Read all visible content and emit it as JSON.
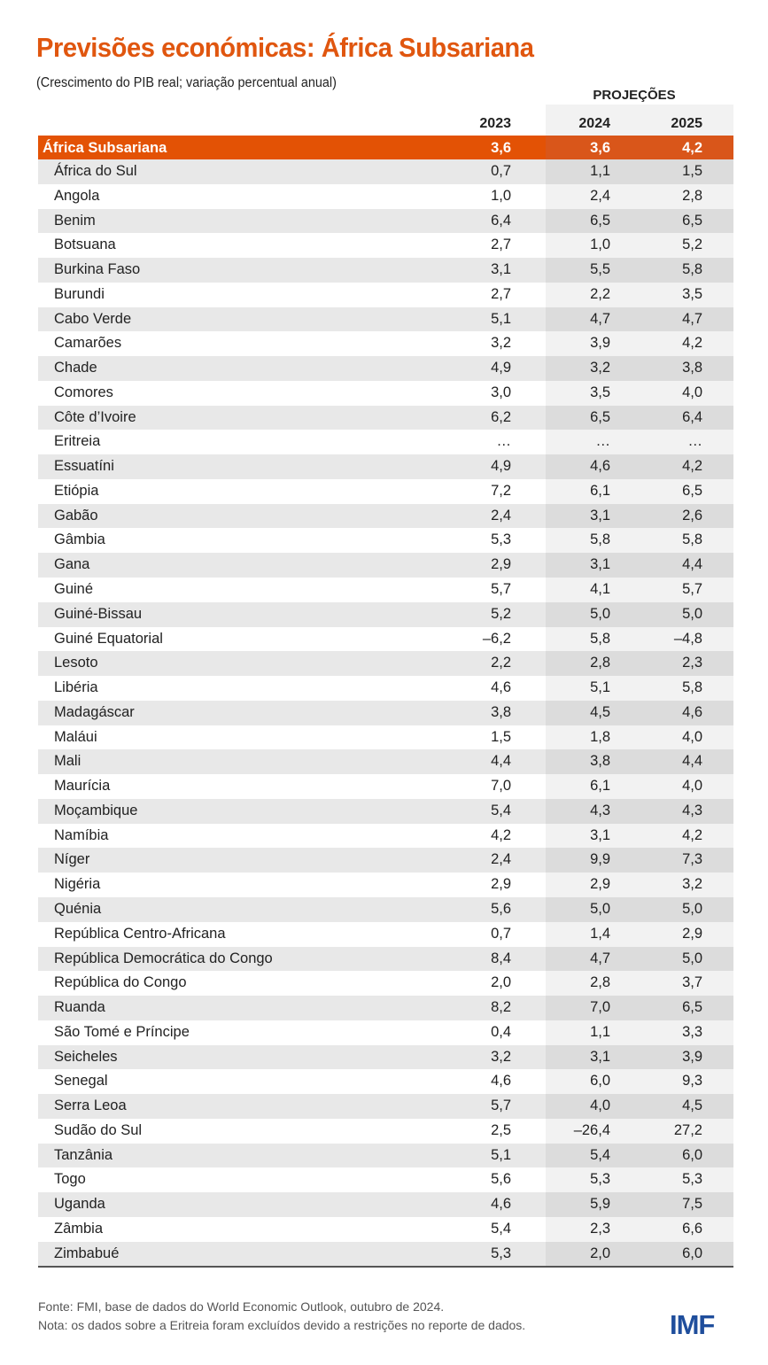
{
  "title": "Previsões económicas: África Subsariana",
  "subtitle": "(Crescimento do PIB real; variação percentual anual)",
  "projections_label": "PROJEÇÕES",
  "columns": [
    "2023",
    "2024",
    "2025"
  ],
  "aggregate": {
    "name": "África Subsariana",
    "values": [
      "3,6",
      "3,6",
      "4,2"
    ]
  },
  "rows": [
    {
      "name": "África do Sul",
      "values": [
        "0,7",
        "1,1",
        "1,5"
      ]
    },
    {
      "name": "Angola",
      "values": [
        "1,0",
        "2,4",
        "2,8"
      ]
    },
    {
      "name": "Benim",
      "values": [
        "6,4",
        "6,5",
        "6,5"
      ]
    },
    {
      "name": "Botsuana",
      "values": [
        "2,7",
        "1,0",
        "5,2"
      ]
    },
    {
      "name": "Burkina Faso",
      "values": [
        "3,1",
        "5,5",
        "5,8"
      ]
    },
    {
      "name": "Burundi",
      "values": [
        "2,7",
        "2,2",
        "3,5"
      ]
    },
    {
      "name": "Cabo Verde",
      "values": [
        "5,1",
        "4,7",
        "4,7"
      ]
    },
    {
      "name": "Camarões",
      "values": [
        "3,2",
        "3,9",
        "4,2"
      ]
    },
    {
      "name": "Chade",
      "values": [
        "4,9",
        "3,2",
        "3,8"
      ]
    },
    {
      "name": "Comores",
      "values": [
        "3,0",
        "3,5",
        "4,0"
      ]
    },
    {
      "name": "Côte d’Ivoire",
      "values": [
        "6,2",
        "6,5",
        "6,4"
      ]
    },
    {
      "name": "Eritreia",
      "values": [
        "…",
        "…",
        "…"
      ]
    },
    {
      "name": "Essuatíni",
      "values": [
        "4,9",
        "4,6",
        "4,2"
      ]
    },
    {
      "name": "Etiópia",
      "values": [
        "7,2",
        "6,1",
        "6,5"
      ]
    },
    {
      "name": "Gabão",
      "values": [
        "2,4",
        "3,1",
        "2,6"
      ]
    },
    {
      "name": "Gâmbia",
      "values": [
        "5,3",
        "5,8",
        "5,8"
      ]
    },
    {
      "name": "Gana",
      "values": [
        "2,9",
        "3,1",
        "4,4"
      ]
    },
    {
      "name": "Guiné",
      "values": [
        "5,7",
        "4,1",
        "5,7"
      ]
    },
    {
      "name": "Guiné-Bissau",
      "values": [
        "5,2",
        "5,0",
        "5,0"
      ]
    },
    {
      "name": "Guiné Equatorial",
      "values": [
        "–6,2",
        "5,8",
        "–4,8"
      ]
    },
    {
      "name": "Lesoto",
      "values": [
        "2,2",
        "2,8",
        "2,3"
      ]
    },
    {
      "name": "Libéria",
      "values": [
        "4,6",
        "5,1",
        "5,8"
      ]
    },
    {
      "name": "Madagáscar",
      "values": [
        "3,8",
        "4,5",
        "4,6"
      ]
    },
    {
      "name": "Maláui",
      "values": [
        "1,5",
        "1,8",
        "4,0"
      ]
    },
    {
      "name": "Mali",
      "values": [
        "4,4",
        "3,8",
        "4,4"
      ]
    },
    {
      "name": "Maurícia",
      "values": [
        "7,0",
        "6,1",
        "4,0"
      ]
    },
    {
      "name": "Moçambique",
      "values": [
        "5,4",
        "4,3",
        "4,3"
      ]
    },
    {
      "name": "Namíbia",
      "values": [
        "4,2",
        "3,1",
        "4,2"
      ]
    },
    {
      "name": "Níger",
      "values": [
        "2,4",
        "9,9",
        "7,3"
      ]
    },
    {
      "name": "Nigéria",
      "values": [
        "2,9",
        "2,9",
        "3,2"
      ]
    },
    {
      "name": "Quénia",
      "values": [
        "5,6",
        "5,0",
        "5,0"
      ]
    },
    {
      "name": "República Centro-Africana",
      "values": [
        "0,7",
        "1,4",
        "2,9"
      ]
    },
    {
      "name": "República Democrática do Congo",
      "values": [
        "8,4",
        "4,7",
        "5,0"
      ]
    },
    {
      "name": "República do Congo",
      "values": [
        "2,0",
        "2,8",
        "3,7"
      ]
    },
    {
      "name": "Ruanda",
      "values": [
        "8,2",
        "7,0",
        "6,5"
      ]
    },
    {
      "name": "São Tomé e Príncipe",
      "values": [
        "0,4",
        "1,1",
        "3,3"
      ]
    },
    {
      "name": "Seicheles",
      "values": [
        "3,2",
        "3,1",
        "3,9"
      ]
    },
    {
      "name": "Senegal",
      "values": [
        "4,6",
        "6,0",
        "9,3"
      ]
    },
    {
      "name": "Serra Leoa",
      "values": [
        "5,7",
        "4,0",
        "4,5"
      ]
    },
    {
      "name": "Sudão do Sul",
      "values": [
        "2,5",
        "–26,4",
        "27,2"
      ]
    },
    {
      "name": "Tanzânia",
      "values": [
        "5,1",
        "5,4",
        "6,0"
      ]
    },
    {
      "name": "Togo",
      "values": [
        "5,6",
        "5,3",
        "5,3"
      ]
    },
    {
      "name": "Uganda",
      "values": [
        "4,6",
        "5,9",
        "7,5"
      ]
    },
    {
      "name": "Zâmbia",
      "values": [
        "5,4",
        "2,3",
        "6,6"
      ]
    },
    {
      "name": "Zimbabué",
      "values": [
        "5,3",
        "2,0",
        "6,0"
      ]
    }
  ],
  "footer": {
    "source": "Fonte: FMI, base de dados do World Economic Outlook, outubro de 2024.",
    "note": "Nota: os dados sobre a Eritreia foram excluídos devido a restrições no reporte de dados."
  },
  "logo": "IMF",
  "colors": {
    "accent": "#E35205",
    "logo": "#1F4E9C"
  }
}
